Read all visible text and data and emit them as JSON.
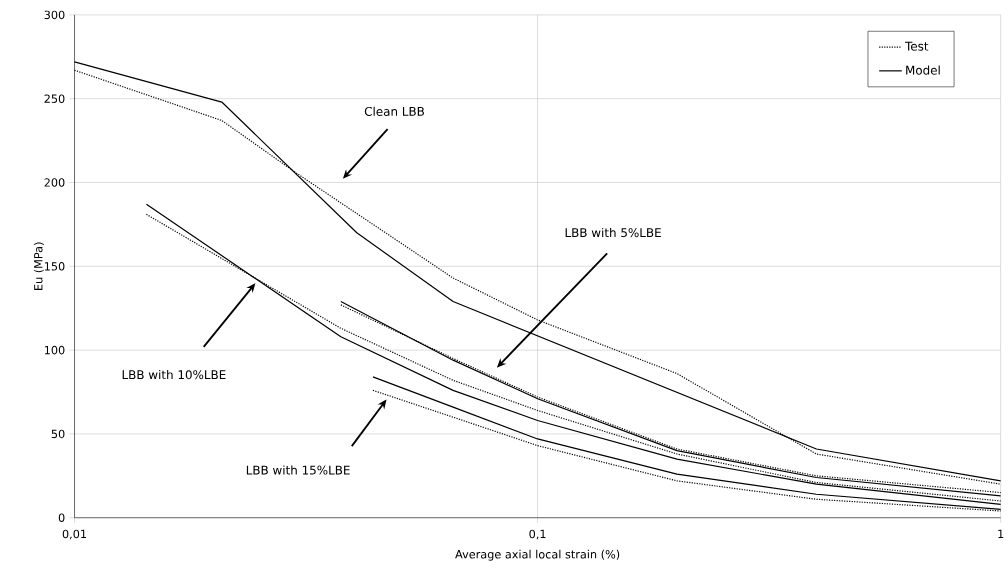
{
  "chart_data": {
    "type": "line",
    "xlabel": "Average axial local strain (%)",
    "ylabel": "Eu (MPa)",
    "log": "x",
    "grid": true,
    "legend": "top right",
    "xlim": [
      0.01,
      1
    ],
    "ylim": [
      0,
      300
    ],
    "xticks": [
      {
        "value": 0.01,
        "label": "0,01"
      },
      {
        "value": 0.1,
        "label": "0,1"
      },
      {
        "value": 1,
        "label": "1"
      }
    ],
    "yticks": [
      0,
      50,
      100,
      150,
      200,
      250,
      300
    ],
    "series": [
      {
        "name": "Test",
        "color": "#000000",
        "line_style": "dotted",
        "x": [
          0.01,
          0.0208,
          0.03,
          0.0657,
          0.1,
          0.2,
          0.4,
          1
        ],
        "values": [
          267,
          237,
          206,
          143,
          118,
          86,
          38,
          20
        ]
      },
      {
        "name": "Model",
        "color": "#000000",
        "line_style": "solid",
        "x": [
          0.01,
          0.0208,
          0.0407,
          0.0657,
          0.4,
          1
        ],
        "values": [
          272,
          248,
          170,
          129,
          41,
          22
        ]
      },
      {
        "color": "#000000",
        "line_style": "dotted",
        "x": [
          0.0376,
          0.0657,
          0.1,
          0.2,
          0.4,
          1
        ],
        "values": [
          127,
          95,
          72,
          41,
          25,
          15
        ]
      },
      {
        "color": "#000000",
        "line_style": "solid",
        "x": [
          0.0376,
          0.0657,
          0.1,
          0.2,
          0.4,
          1
        ],
        "values": [
          129,
          94,
          71,
          40,
          24,
          13
        ]
      },
      {
        "color": "#000000",
        "line_style": "dotted",
        "x": [
          0.0143,
          0.0376,
          0.0657,
          0.1,
          0.2,
          0.4,
          1
        ],
        "values": [
          181,
          113,
          82,
          64,
          38,
          21,
          10
        ]
      },
      {
        "color": "#000000",
        "line_style": "solid",
        "x": [
          0.0143,
          0.0376,
          0.0657,
          0.1,
          0.2,
          0.4,
          1
        ],
        "values": [
          187,
          108,
          76,
          58,
          35,
          20,
          8
        ]
      },
      {
        "color": "#000000",
        "line_style": "dotted",
        "x": [
          0.0441,
          0.0657,
          0.1,
          0.2,
          0.4,
          1
        ],
        "values": [
          76,
          60,
          43,
          22,
          11,
          4
        ]
      },
      {
        "color": "#000000",
        "line_style": "solid",
        "x": [
          0.0441,
          0.0657,
          0.1,
          0.2,
          0.4,
          1
        ],
        "values": [
          84,
          66,
          47,
          26,
          14,
          5
        ]
      }
    ],
    "annotations": [
      "Clean LBB",
      "LBB with 10%LBE",
      "LBB with 15%LBE",
      "LBB with 5%LBE"
    ]
  }
}
